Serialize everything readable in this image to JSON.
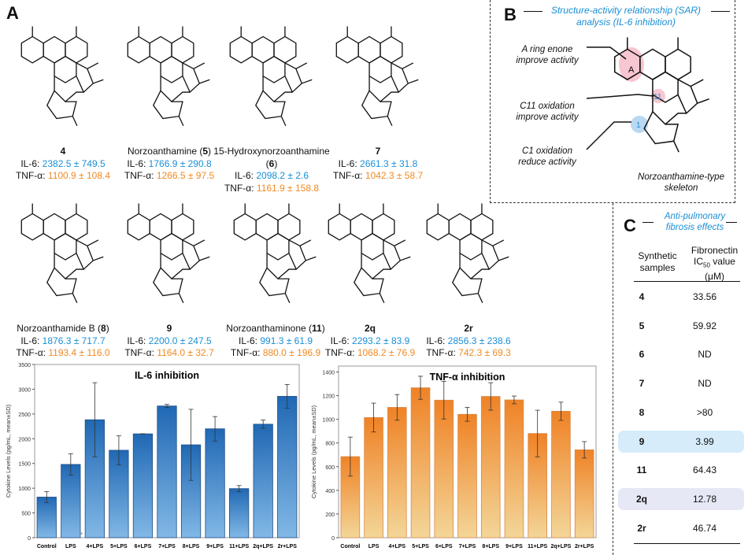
{
  "panels": {
    "A": "A",
    "B": "B",
    "C": "C"
  },
  "compounds": [
    {
      "name": "",
      "num": "4",
      "il6": "IL-6: ",
      "il6_val": "2382.5 ± 749.5",
      "tnf": "TNF-α: ",
      "tnf_val": "1100.9 ± 108.4"
    },
    {
      "name": "Norzoanthamine (",
      "num": "5",
      "close": ")",
      "il6": "IL-6: ",
      "il6_val": "1766.9 ± 290.8",
      "tnf": "TNF-α: ",
      "tnf_val": "1266.5 ± 97.5"
    },
    {
      "name": "15-Hydroxynorzoanthamine (",
      "num": "6",
      "close": ")",
      "il6": "IL-6: ",
      "il6_val": "2098.2 ± 2.6",
      "tnf": "TNF-α: ",
      "tnf_val": "1161.9 ± 158.8"
    },
    {
      "name": "",
      "num": "7",
      "il6": "IL-6: ",
      "il6_val": "2661.3 ± 31.8",
      "tnf": "TNF-α: ",
      "tnf_val": "1042.3 ± 58.7"
    },
    {
      "name": "Norzoanthamide B (",
      "num": "8",
      "close": ")",
      "il6": "IL-6: ",
      "il6_val": "1876.3 ± 717.7",
      "tnf": "TNF-α: ",
      "tnf_val": "1193.4 ± 116.0"
    },
    {
      "name": "",
      "num": "9",
      "il6": "IL-6: ",
      "il6_val": "2200.0 ± 247.5",
      "tnf": "TNF-α: ",
      "tnf_val": "1164.0 ± 32.7"
    },
    {
      "name": "Norzoanthaminone (",
      "num": "11",
      "close": ")",
      "il6": "IL-6: ",
      "il6_val": "991.3 ± 61.9",
      "tnf": "TNF-α: ",
      "tnf_val": "880.0 ± 196.9"
    },
    {
      "name": "",
      "num": "2q",
      "il6": "IL-6: ",
      "il6_val": "2293.2 ± 83.9",
      "tnf": "TNF-α: ",
      "tnf_val": "1068.2 ± 76.9"
    },
    {
      "name": "",
      "num": "2r",
      "il6": "IL-6: ",
      "il6_val": "2856.3 ± 238.6",
      "tnf": "TNF-α: ",
      "tnf_val": "742.3 ± 69.3"
    }
  ],
  "atom_labels": {
    "H": "H",
    "Me": "Me",
    "O": "O",
    "N": "N",
    "OH": "OH",
    "HO": "HO",
    "n15": "15",
    "n1": "1",
    "n11": "11",
    "A": "A"
  },
  "sar": {
    "title_line1": "Structure-activity relationship (SAR)",
    "title_line2": "analysis (IL-6 inhibition)",
    "label1": [
      "A ring enone",
      "improve activity"
    ],
    "label2": [
      "C11 oxidation",
      "improve activity"
    ],
    "label3": [
      "C1 oxidation",
      "reduce activity"
    ],
    "skeleton": [
      "Norzoanthamine-type",
      "skeleton"
    ]
  },
  "table": {
    "title_line1": "Anti-pulmonary",
    "title_line2": "fibrosis effects",
    "col1": [
      "Synthetic",
      "samples"
    ],
    "col2_l1": "Fibronectin",
    "col2_l2": "IC",
    "col2_sub": "50",
    "col2_l2b": " value",
    "col2_l3": "(μM)",
    "rows": [
      {
        "sample": "4",
        "value": "33.56"
      },
      {
        "sample": "5",
        "value": "59.92"
      },
      {
        "sample": "6",
        "value": "ND"
      },
      {
        "sample": "7",
        "value": "ND"
      },
      {
        "sample": "8",
        "value": ">80"
      },
      {
        "sample": "9",
        "value": "3.99",
        "highlight": "#d6ecfb"
      },
      {
        "sample": "11",
        "value": "64.43"
      },
      {
        "sample": "2q",
        "value": "12.78",
        "highlight": "#e6e8f6"
      },
      {
        "sample": "2r",
        "value": "46.74"
      }
    ]
  },
  "chart_data": [
    {
      "type": "bar",
      "title": "IL-6 inhibition",
      "ylabel": "Cytokine Levels (pg/mL, mean±SD)",
      "ylim": [
        0,
        3500
      ],
      "yticks": [
        0,
        500,
        1000,
        1500,
        2000,
        2500,
        3000,
        3500
      ],
      "categories": [
        "Control",
        "LPS",
        "4+LPS",
        "5+LPS",
        "6+LPS",
        "7+LPS",
        "8+LPS",
        "9+LPS",
        "11+LPS",
        "2q+LPS",
        "2r+LPS"
      ],
      "values": [
        820,
        1480,
        2382.5,
        1766.9,
        2098.2,
        2661.3,
        1876.3,
        2200.0,
        991.3,
        2293.2,
        2856.3
      ],
      "errors": [
        110,
        215,
        749.5,
        290.8,
        2.6,
        31.8,
        717.7,
        247.5,
        61.9,
        83.9,
        238.6
      ],
      "annotation": "*",
      "colors": [
        "#2068b4",
        "#82b8e6"
      ]
    },
    {
      "type": "bar",
      "title": "TNF-α inhibition",
      "ylabel": "Cytokine Levels (pg/mL, mean±SD)",
      "ylim": [
        0,
        1450
      ],
      "yticks": [
        0,
        200,
        400,
        600,
        800,
        1000,
        1200,
        1400
      ],
      "categories": [
        "Control",
        "LPS",
        "4+LPS",
        "5+LPS",
        "6+LPS",
        "7+LPS",
        "8+LPS",
        "9+LPS",
        "11+LPS",
        "2q+LPS",
        "2r+LPS"
      ],
      "values": [
        685,
        1015,
        1100.9,
        1266.5,
        1161.9,
        1042.3,
        1193.4,
        1164.0,
        880.0,
        1068.2,
        742.3
      ],
      "errors": [
        165,
        122,
        108.4,
        97.5,
        158.8,
        58.7,
        116.0,
        32.7,
        196.9,
        76.9,
        69.3
      ],
      "colors": [
        "#ef8226",
        "#f3d698"
      ]
    }
  ]
}
